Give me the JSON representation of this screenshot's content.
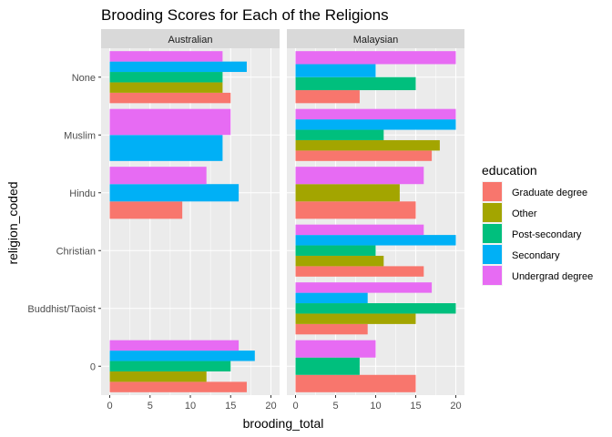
{
  "chart_data": {
    "type": "bar",
    "orientation": "horizontal",
    "title": "Brooding Scores for Each of the Religions",
    "xlabel": "brooding_total",
    "ylabel": "religion_coded",
    "xlim": [
      0,
      20
    ],
    "x_ticks": [
      "0",
      "5",
      "10",
      "15",
      "20"
    ],
    "categories": [
      "None",
      "Muslim",
      "Hindu",
      "Christian",
      "Buddhist/Taoist",
      "0"
    ],
    "grid": true,
    "legend": {
      "title": "education",
      "placement": "right",
      "entries": [
        {
          "name": "Graduate degree",
          "color": "#F8766D"
        },
        {
          "name": "Other",
          "color": "#A3A500"
        },
        {
          "name": "Post-secondary",
          "color": "#00BF7D"
        },
        {
          "name": "Secondary",
          "color": "#00B0F6"
        },
        {
          "name": "Undergrad degree",
          "color": "#E76BF3"
        }
      ]
    },
    "facets": [
      {
        "label": "Australian",
        "groups": [
          {
            "category": "None",
            "bars": [
              {
                "education": "Graduate degree",
                "value": 15
              },
              {
                "education": "Other",
                "value": 14
              },
              {
                "education": "Post-secondary",
                "value": 14
              },
              {
                "education": "Secondary",
                "value": 17
              },
              {
                "education": "Undergrad degree",
                "value": 14
              }
            ]
          },
          {
            "category": "Muslim",
            "bars": [
              {
                "education": "Secondary",
                "value": 14
              },
              {
                "education": "Undergrad degree",
                "value": 15
              }
            ]
          },
          {
            "category": "Hindu",
            "bars": [
              {
                "education": "Graduate degree",
                "value": 9
              },
              {
                "education": "Secondary",
                "value": 16
              },
              {
                "education": "Undergrad degree",
                "value": 12
              }
            ]
          },
          {
            "category": "Christian",
            "bars": []
          },
          {
            "category": "Buddhist/Taoist",
            "bars": []
          },
          {
            "category": "0",
            "bars": [
              {
                "education": "Graduate degree",
                "value": 17
              },
              {
                "education": "Other",
                "value": 12
              },
              {
                "education": "Post-secondary",
                "value": 15
              },
              {
                "education": "Secondary",
                "value": 18
              },
              {
                "education": "Undergrad degree",
                "value": 16
              }
            ]
          }
        ]
      },
      {
        "label": "Malaysian",
        "groups": [
          {
            "category": "None",
            "bars": [
              {
                "education": "Graduate degree",
                "value": 8
              },
              {
                "education": "Post-secondary",
                "value": 15
              },
              {
                "education": "Secondary",
                "value": 10
              },
              {
                "education": "Undergrad degree",
                "value": 20
              }
            ]
          },
          {
            "category": "Muslim",
            "bars": [
              {
                "education": "Graduate degree",
                "value": 17
              },
              {
                "education": "Other",
                "value": 18
              },
              {
                "education": "Post-secondary",
                "value": 11
              },
              {
                "education": "Secondary",
                "value": 20
              },
              {
                "education": "Undergrad degree",
                "value": 20
              }
            ]
          },
          {
            "category": "Hindu",
            "bars": [
              {
                "education": "Graduate degree",
                "value": 15
              },
              {
                "education": "Other",
                "value": 13
              },
              {
                "education": "Undergrad degree",
                "value": 16
              }
            ]
          },
          {
            "category": "Christian",
            "bars": [
              {
                "education": "Graduate degree",
                "value": 16
              },
              {
                "education": "Other",
                "value": 11
              },
              {
                "education": "Post-secondary",
                "value": 10
              },
              {
                "education": "Secondary",
                "value": 20
              },
              {
                "education": "Undergrad degree",
                "value": 16
              }
            ]
          },
          {
            "category": "Buddhist/Taoist",
            "bars": [
              {
                "education": "Graduate degree",
                "value": 9
              },
              {
                "education": "Other",
                "value": 15
              },
              {
                "education": "Post-secondary",
                "value": 20
              },
              {
                "education": "Secondary",
                "value": 9
              },
              {
                "education": "Undergrad degree",
                "value": 17
              }
            ]
          },
          {
            "category": "0",
            "bars": [
              {
                "education": "Graduate degree",
                "value": 15
              },
              {
                "education": "Post-secondary",
                "value": 8
              },
              {
                "education": "Undergrad degree",
                "value": 10
              }
            ]
          }
        ]
      }
    ]
  }
}
